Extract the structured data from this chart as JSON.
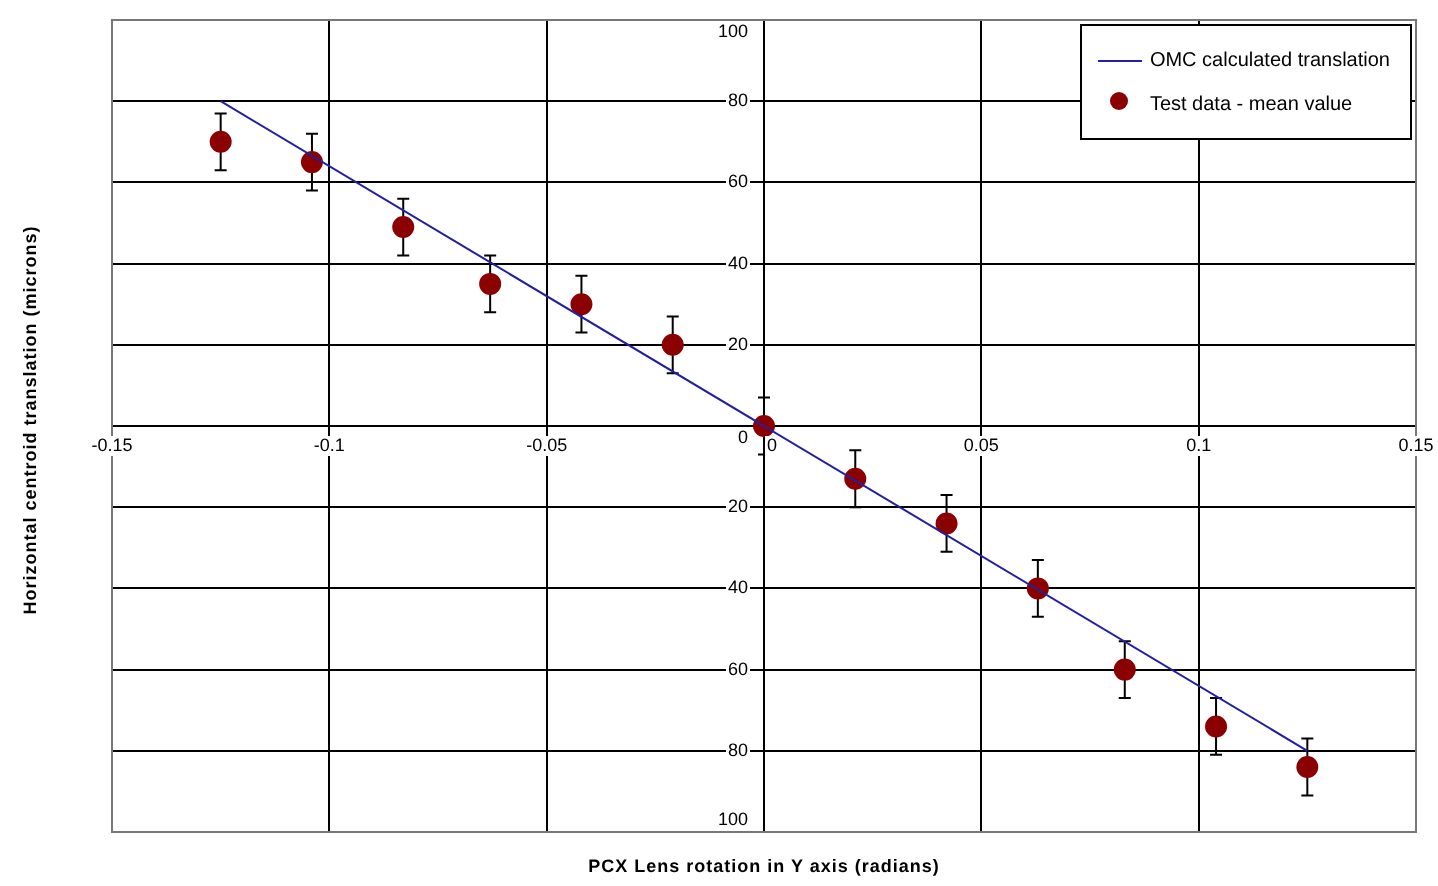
{
  "chart_data": {
    "type": "scatter",
    "xlabel": "PCX Lens rotation in Y axis (radians)",
    "ylabel": "Horizontal centroid translation  (microns)",
    "xlim": [
      -0.15,
      0.15
    ],
    "xticks": [
      -0.15,
      -0.1,
      -0.05,
      0,
      0.05,
      0.1,
      0.15
    ],
    "ylim": [
      -100,
      100
    ],
    "yticks": [
      {
        "value": 0,
        "label": "0"
      },
      {
        "value": 20,
        "label": "20"
      },
      {
        "value": 40,
        "label": "40"
      },
      {
        "value": 60,
        "label": "60"
      },
      {
        "value": 80,
        "label": "80"
      },
      {
        "value": 100,
        "label": "100"
      },
      {
        "value": -20,
        "label": "20"
      },
      {
        "value": -40,
        "label": "40"
      },
      {
        "value": -60,
        "label": "60"
      },
      {
        "value": -80,
        "label": "80"
      },
      {
        "value": -100,
        "label": "100"
      }
    ],
    "grid": true,
    "legend": "top right",
    "series": [
      {
        "name": "OMC calculated translation",
        "type": "line",
        "color": "#2020a0",
        "x": [
          -0.125,
          0.125
        ],
        "values": [
          80,
          -80
        ]
      },
      {
        "name": "Test data - mean value",
        "type": "scatter",
        "marker": "circle",
        "color": "#8b0000",
        "x": [
          -0.125,
          -0.104,
          -0.083,
          -0.063,
          -0.042,
          -0.021,
          0,
          0.021,
          0.042,
          0.063,
          0.083,
          0.104,
          0.125
        ],
        "values": [
          70,
          65,
          49,
          35,
          30,
          20,
          0,
          -13,
          -24,
          -40,
          -60,
          -74,
          -84
        ],
        "errors": [
          7,
          7,
          7,
          7,
          7,
          7,
          7,
          7,
          7,
          7,
          7,
          7,
          7
        ]
      }
    ]
  }
}
